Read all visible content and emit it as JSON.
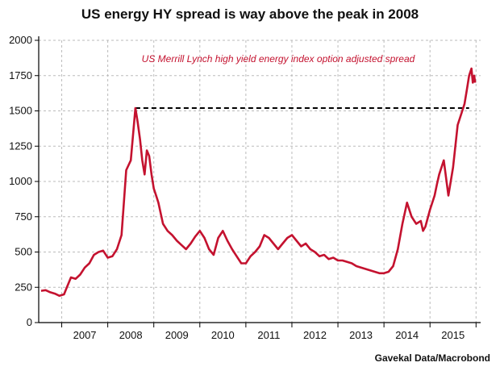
{
  "chart_data": {
    "type": "line",
    "title": "US energy HY spread is way above the peak in 2008",
    "annotation": "US Merrill Lynch high yield energy index option adjusted spread",
    "source": "Gavekal Data/Macrobond",
    "xlabel": "",
    "ylabel": "",
    "x_tick_labels": [
      "2007",
      "2008",
      "2009",
      "2010",
      "2011",
      "2012",
      "2013",
      "2014",
      "2015"
    ],
    "y_ticks": [
      0,
      250,
      500,
      750,
      1000,
      1250,
      1500,
      1750,
      2000
    ],
    "xlim": [
      2006.5,
      2016.1
    ],
    "ylim": [
      0,
      2000
    ],
    "grid": true,
    "line_color": "#c4122f",
    "reference_line": {
      "value": 1520,
      "style": "dashed",
      "color": "#000000"
    },
    "series": [
      {
        "name": "US Merrill Lynch high yield energy index option adjusted spread",
        "x": [
          2006.55,
          2006.65,
          2006.75,
          2006.85,
          2006.95,
          2007.05,
          2007.1,
          2007.2,
          2007.3,
          2007.4,
          2007.5,
          2007.6,
          2007.7,
          2007.8,
          2007.9,
          2008.0,
          2008.1,
          2008.2,
          2008.3,
          2008.4,
          2008.5,
          2008.6,
          2008.65,
          2008.7,
          2008.75,
          2008.8,
          2008.85,
          2008.9,
          2008.95,
          2009.0,
          2009.05,
          2009.1,
          2009.2,
          2009.3,
          2009.4,
          2009.5,
          2009.6,
          2009.7,
          2009.8,
          2009.9,
          2010.0,
          2010.1,
          2010.2,
          2010.3,
          2010.4,
          2010.5,
          2010.6,
          2010.7,
          2010.8,
          2010.9,
          2011.0,
          2011.1,
          2011.2,
          2011.3,
          2011.4,
          2011.5,
          2011.6,
          2011.7,
          2011.8,
          2011.9,
          2012.0,
          2012.1,
          2012.2,
          2012.3,
          2012.4,
          2012.5,
          2012.6,
          2012.7,
          2012.8,
          2012.9,
          2013.0,
          2013.1,
          2013.2,
          2013.3,
          2013.4,
          2013.5,
          2013.6,
          2013.7,
          2013.8,
          2013.9,
          2014.0,
          2014.1,
          2014.2,
          2014.3,
          2014.4,
          2014.5,
          2014.6,
          2014.7,
          2014.8,
          2014.85,
          2014.9,
          2015.0,
          2015.1,
          2015.15,
          2015.2,
          2015.3,
          2015.4,
          2015.5,
          2015.6,
          2015.7,
          2015.75,
          2015.8,
          2015.85,
          2015.9,
          2015.93,
          2015.96,
          2015.98
        ],
        "y": [
          225,
          230,
          215,
          205,
          190,
          200,
          240,
          320,
          310,
          340,
          390,
          420,
          480,
          500,
          510,
          460,
          470,
          520,
          620,
          1080,
          1150,
          1520,
          1420,
          1300,
          1150,
          1050,
          1220,
          1180,
          1050,
          950,
          900,
          850,
          700,
          650,
          620,
          580,
          550,
          520,
          560,
          610,
          650,
          600,
          520,
          480,
          600,
          650,
          580,
          520,
          470,
          420,
          420,
          470,
          500,
          540,
          620,
          600,
          560,
          520,
          560,
          600,
          620,
          580,
          540,
          560,
          520,
          500,
          470,
          480,
          450,
          460,
          440,
          440,
          430,
          420,
          400,
          390,
          380,
          370,
          360,
          350,
          350,
          360,
          400,
          520,
          700,
          850,
          750,
          700,
          720,
          650,
          680,
          800,
          900,
          980,
          1050,
          1150,
          900,
          1100,
          1400,
          1500,
          1550,
          1650,
          1750,
          1800,
          1700,
          1750,
          1700
        ]
      }
    ]
  }
}
